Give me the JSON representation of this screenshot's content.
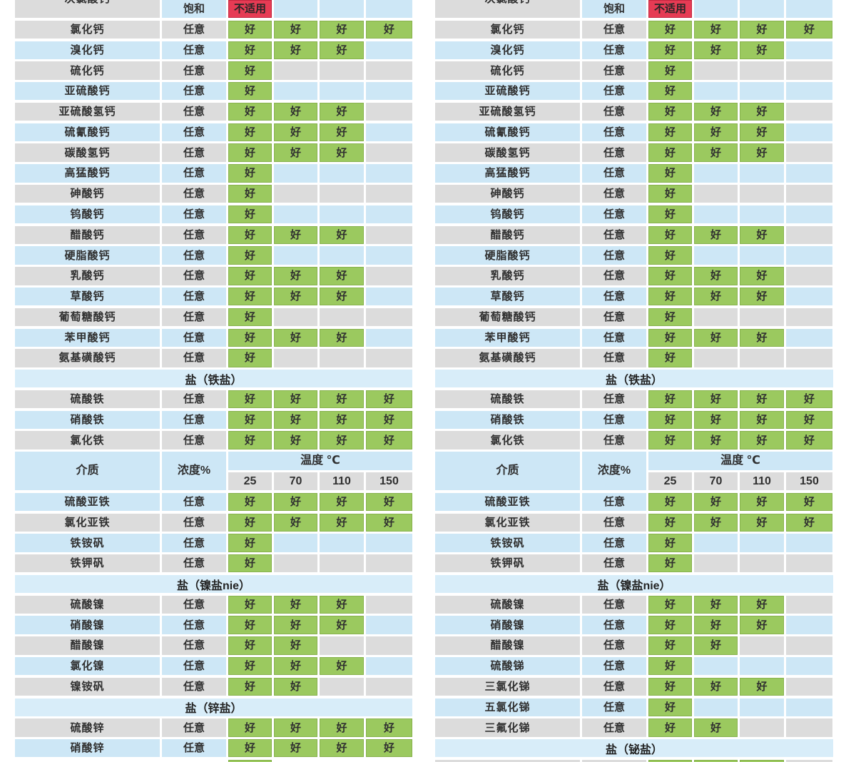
{
  "palette": {
    "row_gray": "#dcdcdc",
    "row_blue": "#cde7f6",
    "section_blue": "#d8edf9",
    "good_green": "#9bc95f",
    "bad_red": "#e63b54",
    "text": "#303030",
    "gutter": "#ffffff"
  },
  "labels": {
    "good": "好",
    "bad": "不适用",
    "medium": "介质",
    "concentration": "浓度%",
    "temperature": "温度 ℃",
    "temps": [
      "25",
      "70",
      "110",
      "150"
    ]
  },
  "chart_data": {
    "type": "table",
    "note": "two side-by-side chemical compatibility tables; cells g=好(good), b=不适用(not applicable), empty=blank"
  },
  "tables": [
    {
      "id": "left",
      "rows": [
        {
          "t": "r",
          "label": "次氯酸钙",
          "conc": "饱和",
          "cells": [
            "b",
            "",
            "",
            ""
          ],
          "bg": "blue",
          "label_bg": "gray",
          "clip": true
        },
        {
          "t": "r",
          "label": "氯化钙",
          "conc": "任意",
          "cells": [
            "g",
            "g",
            "g",
            "g"
          ],
          "bg": "gray"
        },
        {
          "t": "r",
          "label": "溴化钙",
          "conc": "任意",
          "cells": [
            "g",
            "g",
            "g",
            ""
          ],
          "bg": "blue"
        },
        {
          "t": "r",
          "label": "硫化钙",
          "conc": "任意",
          "cells": [
            "g",
            "",
            "",
            ""
          ],
          "bg": "gray"
        },
        {
          "t": "r",
          "label": "亚硫酸钙",
          "conc": "任意",
          "cells": [
            "g",
            "",
            "",
            ""
          ],
          "bg": "blue"
        },
        {
          "t": "r",
          "label": "亚硫酸氢钙",
          "conc": "任意",
          "cells": [
            "g",
            "g",
            "g",
            ""
          ],
          "bg": "gray"
        },
        {
          "t": "r",
          "label": "硫氰酸钙",
          "conc": "任意",
          "cells": [
            "g",
            "g",
            "g",
            ""
          ],
          "bg": "blue"
        },
        {
          "t": "r",
          "label": "碳酸氢钙",
          "conc": "任意",
          "cells": [
            "g",
            "g",
            "g",
            ""
          ],
          "bg": "gray"
        },
        {
          "t": "r",
          "label": "高猛酸钙",
          "conc": "任意",
          "cells": [
            "g",
            "",
            "",
            ""
          ],
          "bg": "blue"
        },
        {
          "t": "r",
          "label": "砷酸钙",
          "conc": "任意",
          "cells": [
            "g",
            "",
            "",
            ""
          ],
          "bg": "gray"
        },
        {
          "t": "r",
          "label": "钨酸钙",
          "conc": "任意",
          "cells": [
            "g",
            "",
            "",
            ""
          ],
          "bg": "blue"
        },
        {
          "t": "r",
          "label": "醋酸钙",
          "conc": "任意",
          "cells": [
            "g",
            "g",
            "g",
            ""
          ],
          "bg": "gray"
        },
        {
          "t": "r",
          "label": "硬脂酸钙",
          "conc": "任意",
          "cells": [
            "g",
            "",
            "",
            ""
          ],
          "bg": "blue"
        },
        {
          "t": "r",
          "label": "乳酸钙",
          "conc": "任意",
          "cells": [
            "g",
            "g",
            "g",
            ""
          ],
          "bg": "gray"
        },
        {
          "t": "r",
          "label": "草酸钙",
          "conc": "任意",
          "cells": [
            "g",
            "g",
            "g",
            ""
          ],
          "bg": "blue"
        },
        {
          "t": "r",
          "label": "葡萄糖酸钙",
          "conc": "任意",
          "cells": [
            "g",
            "",
            "",
            ""
          ],
          "bg": "gray"
        },
        {
          "t": "r",
          "label": "苯甲酸钙",
          "conc": "任意",
          "cells": [
            "g",
            "g",
            "g",
            ""
          ],
          "bg": "blue"
        },
        {
          "t": "r",
          "label": "氨基磺酸钙",
          "conc": "任意",
          "cells": [
            "g",
            "",
            "",
            ""
          ],
          "bg": "gray"
        },
        {
          "t": "s",
          "label": "盐（铁盐）"
        },
        {
          "t": "r",
          "label": "硫酸铁",
          "conc": "任意",
          "cells": [
            "g",
            "g",
            "g",
            "g"
          ],
          "bg": "gray"
        },
        {
          "t": "r",
          "label": "硝酸铁",
          "conc": "任意",
          "cells": [
            "g",
            "g",
            "g",
            "g"
          ],
          "bg": "blue"
        },
        {
          "t": "r",
          "label": "氯化铁",
          "conc": "任意",
          "cells": [
            "g",
            "g",
            "g",
            "g"
          ],
          "bg": "gray"
        },
        {
          "t": "h"
        },
        {
          "t": "r",
          "label": "硫酸亚铁",
          "conc": "任意",
          "cells": [
            "g",
            "g",
            "g",
            "g"
          ],
          "bg": "blue"
        },
        {
          "t": "r",
          "label": "氯化亚铁",
          "conc": "任意",
          "cells": [
            "g",
            "g",
            "g",
            "g"
          ],
          "bg": "gray"
        },
        {
          "t": "r",
          "label": "铁铵矾",
          "conc": "任意",
          "cells": [
            "g",
            "",
            "",
            ""
          ],
          "bg": "blue"
        },
        {
          "t": "r",
          "label": "铁钾矾",
          "conc": "任意",
          "cells": [
            "g",
            "",
            "",
            ""
          ],
          "bg": "gray"
        },
        {
          "t": "s",
          "label": "盐（镍盐nie）"
        },
        {
          "t": "r",
          "label": "硫酸镍",
          "conc": "任意",
          "cells": [
            "g",
            "g",
            "g",
            ""
          ],
          "bg": "gray"
        },
        {
          "t": "r",
          "label": "硝酸镍",
          "conc": "任意",
          "cells": [
            "g",
            "g",
            "g",
            ""
          ],
          "bg": "blue"
        },
        {
          "t": "r",
          "label": "醋酸镍",
          "conc": "任意",
          "cells": [
            "g",
            "g",
            "",
            ""
          ],
          "bg": "gray"
        },
        {
          "t": "r",
          "label": "氯化镍",
          "conc": "任意",
          "cells": [
            "g",
            "g",
            "g",
            ""
          ],
          "bg": "blue"
        },
        {
          "t": "r",
          "label": "镍铵矾",
          "conc": "任意",
          "cells": [
            "g",
            "g",
            "",
            ""
          ],
          "bg": "gray"
        },
        {
          "t": "s",
          "label": "盐（锌盐）"
        },
        {
          "t": "r",
          "label": "硫酸锌",
          "conc": "任意",
          "cells": [
            "g",
            "g",
            "g",
            "g"
          ],
          "bg": "gray"
        },
        {
          "t": "r",
          "label": "硝酸锌",
          "conc": "任意",
          "cells": [
            "g",
            "g",
            "g",
            "g"
          ],
          "bg": "blue"
        },
        {
          "t": "cut",
          "cells": [
            "g",
            "",
            "",
            ""
          ],
          "bg": "none"
        }
      ]
    },
    {
      "id": "right",
      "rows": [
        {
          "t": "r",
          "label": "次氯酸钙",
          "conc": "饱和",
          "cells": [
            "b",
            "",
            "",
            ""
          ],
          "bg": "blue",
          "label_bg": "gray",
          "clip": true
        },
        {
          "t": "r",
          "label": "氯化钙",
          "conc": "任意",
          "cells": [
            "g",
            "g",
            "g",
            "g"
          ],
          "bg": "gray"
        },
        {
          "t": "r",
          "label": "溴化钙",
          "conc": "任意",
          "cells": [
            "g",
            "g",
            "g",
            ""
          ],
          "bg": "blue"
        },
        {
          "t": "r",
          "label": "硫化钙",
          "conc": "任意",
          "cells": [
            "g",
            "",
            "",
            ""
          ],
          "bg": "gray"
        },
        {
          "t": "r",
          "label": "亚硫酸钙",
          "conc": "任意",
          "cells": [
            "g",
            "",
            "",
            ""
          ],
          "bg": "blue"
        },
        {
          "t": "r",
          "label": "亚硫酸氢钙",
          "conc": "任意",
          "cells": [
            "g",
            "g",
            "g",
            ""
          ],
          "bg": "gray"
        },
        {
          "t": "r",
          "label": "硫氰酸钙",
          "conc": "任意",
          "cells": [
            "g",
            "g",
            "g",
            ""
          ],
          "bg": "blue"
        },
        {
          "t": "r",
          "label": "碳酸氢钙",
          "conc": "任意",
          "cells": [
            "g",
            "g",
            "g",
            ""
          ],
          "bg": "gray"
        },
        {
          "t": "r",
          "label": "高猛酸钙",
          "conc": "任意",
          "cells": [
            "g",
            "",
            "",
            ""
          ],
          "bg": "blue"
        },
        {
          "t": "r",
          "label": "砷酸钙",
          "conc": "任意",
          "cells": [
            "g",
            "",
            "",
            ""
          ],
          "bg": "gray"
        },
        {
          "t": "r",
          "label": "钨酸钙",
          "conc": "任意",
          "cells": [
            "g",
            "",
            "",
            ""
          ],
          "bg": "blue"
        },
        {
          "t": "r",
          "label": "醋酸钙",
          "conc": "任意",
          "cells": [
            "g",
            "g",
            "g",
            ""
          ],
          "bg": "gray"
        },
        {
          "t": "r",
          "label": "硬脂酸钙",
          "conc": "任意",
          "cells": [
            "g",
            "",
            "",
            ""
          ],
          "bg": "blue"
        },
        {
          "t": "r",
          "label": "乳酸钙",
          "conc": "任意",
          "cells": [
            "g",
            "g",
            "g",
            ""
          ],
          "bg": "gray"
        },
        {
          "t": "r",
          "label": "草酸钙",
          "conc": "任意",
          "cells": [
            "g",
            "g",
            "g",
            ""
          ],
          "bg": "blue"
        },
        {
          "t": "r",
          "label": "葡萄糖酸钙",
          "conc": "任意",
          "cells": [
            "g",
            "",
            "",
            ""
          ],
          "bg": "gray"
        },
        {
          "t": "r",
          "label": "苯甲酸钙",
          "conc": "任意",
          "cells": [
            "g",
            "g",
            "g",
            ""
          ],
          "bg": "blue"
        },
        {
          "t": "r",
          "label": "氨基磺酸钙",
          "conc": "任意",
          "cells": [
            "g",
            "",
            "",
            ""
          ],
          "bg": "gray"
        },
        {
          "t": "s",
          "label": "盐（铁盐）"
        },
        {
          "t": "r",
          "label": "硫酸铁",
          "conc": "任意",
          "cells": [
            "g",
            "g",
            "g",
            "g"
          ],
          "bg": "gray"
        },
        {
          "t": "r",
          "label": "硝酸铁",
          "conc": "任意",
          "cells": [
            "g",
            "g",
            "g",
            "g"
          ],
          "bg": "blue"
        },
        {
          "t": "r",
          "label": "氯化铁",
          "conc": "任意",
          "cells": [
            "g",
            "g",
            "g",
            "g"
          ],
          "bg": "gray"
        },
        {
          "t": "h"
        },
        {
          "t": "r",
          "label": "硫酸亚铁",
          "conc": "任意",
          "cells": [
            "g",
            "g",
            "g",
            "g"
          ],
          "bg": "blue"
        },
        {
          "t": "r",
          "label": "氯化亚铁",
          "conc": "任意",
          "cells": [
            "g",
            "g",
            "g",
            "g"
          ],
          "bg": "gray"
        },
        {
          "t": "r",
          "label": "铁铵矾",
          "conc": "任意",
          "cells": [
            "g",
            "",
            "",
            ""
          ],
          "bg": "blue"
        },
        {
          "t": "r",
          "label": "铁钾矾",
          "conc": "任意",
          "cells": [
            "g",
            "",
            "",
            ""
          ],
          "bg": "gray"
        },
        {
          "t": "s",
          "label": "盐（镍盐nie）"
        },
        {
          "t": "r",
          "label": "硫酸镍",
          "conc": "任意",
          "cells": [
            "g",
            "g",
            "g",
            ""
          ],
          "bg": "gray"
        },
        {
          "t": "r",
          "label": "硝酸镍",
          "conc": "任意",
          "cells": [
            "g",
            "g",
            "g",
            ""
          ],
          "bg": "blue"
        },
        {
          "t": "r",
          "label": "醋酸镍",
          "conc": "任意",
          "cells": [
            "g",
            "g",
            "",
            ""
          ],
          "bg": "gray"
        },
        {
          "t": "r",
          "label": "硫酸锑",
          "conc": "任意",
          "cells": [
            "g",
            "",
            "",
            ""
          ],
          "bg": "blue"
        },
        {
          "t": "r",
          "label": "三氯化锑",
          "conc": "任意",
          "cells": [
            "g",
            "g",
            "g",
            ""
          ],
          "bg": "gray"
        },
        {
          "t": "r",
          "label": "五氯化锑",
          "conc": "任意",
          "cells": [
            "g",
            "",
            "",
            ""
          ],
          "bg": "blue"
        },
        {
          "t": "r",
          "label": "三氟化锑",
          "conc": "任意",
          "cells": [
            "g",
            "g",
            "",
            ""
          ],
          "bg": "gray"
        },
        {
          "t": "s",
          "label": "盐（铋盐）"
        },
        {
          "t": "cut",
          "cells": [
            "g",
            "g",
            "g",
            ""
          ],
          "bg": "gray"
        }
      ]
    }
  ]
}
